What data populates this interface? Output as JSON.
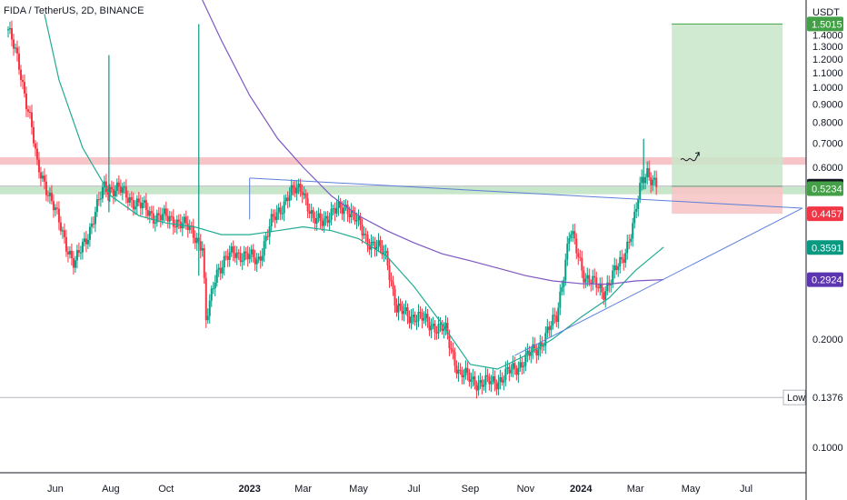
{
  "header": {
    "symbol_title": "FIDA / TetherUS, 2D, BINANCE",
    "currency_label": "USDT"
  },
  "colors": {
    "candle_up": "#089981",
    "candle_down": "#f23645",
    "ema_fast": "#22ab94",
    "ema_slow": "#7e57c2",
    "trendline": "#5b7fd8",
    "resistance_zone": "#f7c5c8",
    "support_zone": "#c8e6c9",
    "target_box": "#c8e6c9",
    "stop_box": "#f7c5c8"
  },
  "chart_data": {
    "type": "candlestick",
    "y_scale": "log",
    "ylim": [
      0.085,
      1.75
    ],
    "y_ticks": [
      "1.5015",
      "1.4000",
      "1.3000",
      "1.2000",
      "1.1000",
      "1.0000",
      "0.9000",
      "0.8000",
      "0.7000",
      "0.6000",
      "0.5319",
      "0.5234",
      "0.4457",
      "0.3591",
      "0.2924",
      "0.2000",
      "0.1376",
      "0.1000"
    ],
    "x_ticks": [
      "Jun",
      "Aug",
      "Oct",
      "2023",
      "Mar",
      "May",
      "Jul",
      "Sep",
      "Nov",
      "2024",
      "Mar",
      "May",
      "Jul"
    ],
    "x_tick_dates": [
      "2022-06",
      "2022-08",
      "2022-10",
      "2023-01",
      "2023-03",
      "2023-05",
      "2023-07",
      "2023-09",
      "2023-11",
      "2024-01",
      "2024-03",
      "2024-05",
      "2024-07"
    ],
    "price_points": [
      [
        "2022-04-10",
        1.45
      ],
      [
        "2022-04-22",
        1.15
      ],
      [
        "2022-05-05",
        0.8
      ],
      [
        "2022-05-12",
        0.6
      ],
      [
        "2022-05-20",
        0.55
      ],
      [
        "2022-06-08",
        0.4
      ],
      [
        "2022-06-22",
        0.32
      ],
      [
        "2022-07-08",
        0.4
      ],
      [
        "2022-07-25",
        0.53
      ],
      [
        "2022-08-10",
        0.52
      ],
      [
        "2022-08-28",
        0.48
      ],
      [
        "2022-09-18",
        0.44
      ],
      [
        "2022-10-10",
        0.43
      ],
      [
        "2022-10-30",
        0.4
      ],
      [
        "2022-11-10",
        0.36
      ],
      [
        "2022-11-14",
        0.22
      ],
      [
        "2022-11-25",
        0.31
      ],
      [
        "2022-12-15",
        0.35
      ],
      [
        "2023-01-10",
        0.33
      ],
      [
        "2023-01-25",
        0.42
      ],
      [
        "2023-02-12",
        0.5
      ],
      [
        "2023-02-28",
        0.53
      ],
      [
        "2023-03-12",
        0.42
      ],
      [
        "2023-03-28",
        0.44
      ],
      [
        "2023-04-18",
        0.47
      ],
      [
        "2023-05-10",
        0.38
      ],
      [
        "2023-06-01",
        0.34
      ],
      [
        "2023-06-12",
        0.24
      ],
      [
        "2023-07-05",
        0.23
      ],
      [
        "2023-08-05",
        0.21
      ],
      [
        "2023-08-20",
        0.16
      ],
      [
        "2023-09-15",
        0.15
      ],
      [
        "2023-10-05",
        0.155
      ],
      [
        "2023-10-25",
        0.17
      ],
      [
        "2023-11-15",
        0.19
      ],
      [
        "2023-12-05",
        0.23
      ],
      [
        "2023-12-20",
        0.4
      ],
      [
        "2024-01-05",
        0.3
      ],
      [
        "2024-01-25",
        0.27
      ],
      [
        "2024-02-15",
        0.33
      ],
      [
        "2024-02-28",
        0.42
      ],
      [
        "2024-03-08",
        0.55
      ],
      [
        "2024-03-14",
        0.59
      ],
      [
        "2024-03-24",
        0.53
      ]
    ],
    "wicks": [
      {
        "date": "2022-07-30",
        "low": 0.45,
        "high": 1.23
      },
      {
        "date": "2022-11-06",
        "low": 0.3,
        "high": 1.5
      },
      {
        "date": "2024-03-10",
        "low": 0.52,
        "high": 0.72
      }
    ],
    "ema_fast_points": [
      [
        "2022-05-20",
        1.6
      ],
      [
        "2022-06-05",
        1.05
      ],
      [
        "2022-07-01",
        0.68
      ],
      [
        "2022-08-01",
        0.5
      ],
      [
        "2022-09-01",
        0.44
      ],
      [
        "2022-10-01",
        0.42
      ],
      [
        "2022-11-01",
        0.41
      ],
      [
        "2022-12-01",
        0.39
      ],
      [
        "2023-01-01",
        0.39
      ],
      [
        "2023-02-01",
        0.4
      ],
      [
        "2023-03-01",
        0.41
      ],
      [
        "2023-04-01",
        0.4
      ],
      [
        "2023-05-01",
        0.38
      ],
      [
        "2023-06-01",
        0.34
      ],
      [
        "2023-07-01",
        0.28
      ],
      [
        "2023-08-01",
        0.22
      ],
      [
        "2023-09-01",
        0.17
      ],
      [
        "2023-10-01",
        0.165
      ],
      [
        "2023-11-01",
        0.18
      ],
      [
        "2023-12-01",
        0.2
      ],
      [
        "2024-01-01",
        0.23
      ],
      [
        "2024-02-01",
        0.26
      ],
      [
        "2024-03-01",
        0.31
      ],
      [
        "2024-04-01",
        0.36
      ]
    ],
    "ema_slow_points": [
      [
        "2022-11-10",
        1.75
      ],
      [
        "2022-12-01",
        1.35
      ],
      [
        "2023-01-01",
        0.95
      ],
      [
        "2023-02-01",
        0.72
      ],
      [
        "2023-03-01",
        0.6
      ],
      [
        "2023-04-01",
        0.5
      ],
      [
        "2023-05-01",
        0.44
      ],
      [
        "2023-06-01",
        0.4
      ],
      [
        "2023-07-01",
        0.37
      ],
      [
        "2023-08-01",
        0.345
      ],
      [
        "2023-09-01",
        0.33
      ],
      [
        "2023-10-01",
        0.315
      ],
      [
        "2023-11-01",
        0.3
      ],
      [
        "2023-12-01",
        0.29
      ],
      [
        "2024-01-01",
        0.285
      ],
      [
        "2024-02-01",
        0.284
      ],
      [
        "2024-03-01",
        0.29
      ],
      [
        "2024-04-01",
        0.2924
      ]
    ],
    "trendlines": [
      {
        "from": [
          "2023-01-01",
          0.56
        ],
        "to": [
          "2024-09-01",
          0.462
        ]
      },
      {
        "from": [
          "2023-10-20",
          0.18
        ],
        "to": [
          "2024-09-01",
          0.462
        ]
      },
      {
        "from": [
          "2023-01-01",
          0.56
        ],
        "to": [
          "2023-01-01",
          0.43
        ]
      }
    ],
    "zones": [
      {
        "name": "resistance",
        "y_from": 0.61,
        "y_to": 0.64,
        "x_from": "start",
        "x_to": "end"
      },
      {
        "name": "support",
        "y_from": 0.505,
        "y_to": 0.53,
        "x_from": "start",
        "x_to": "end"
      }
    ],
    "hlines": [
      {
        "value": 0.5319,
        "style": "grey"
      },
      {
        "value": 0.1376,
        "style": "grey"
      }
    ],
    "position": {
      "x_from": "2024-04-10",
      "x_to": "2024-08-10",
      "target": 1.5015,
      "entry": 0.5319,
      "stop": 0.4457
    },
    "price_badges": [
      {
        "label": "1.5015",
        "value": 1.5015,
        "color": "#43a047"
      },
      {
        "label": "0.5319",
        "value": 0.5319,
        "color": "#131722"
      },
      {
        "label": "0.5234",
        "value": 0.5234,
        "color": "#43a047"
      },
      {
        "label": "0.4457",
        "value": 0.4457,
        "color": "#f23645"
      },
      {
        "label": "0.3591",
        "value": 0.3591,
        "color": "#089981"
      },
      {
        "label": "0.2924",
        "value": 0.2924,
        "color": "#5e35b1"
      }
    ],
    "low_label": {
      "text": "Low",
      "value": 0.1376
    }
  }
}
